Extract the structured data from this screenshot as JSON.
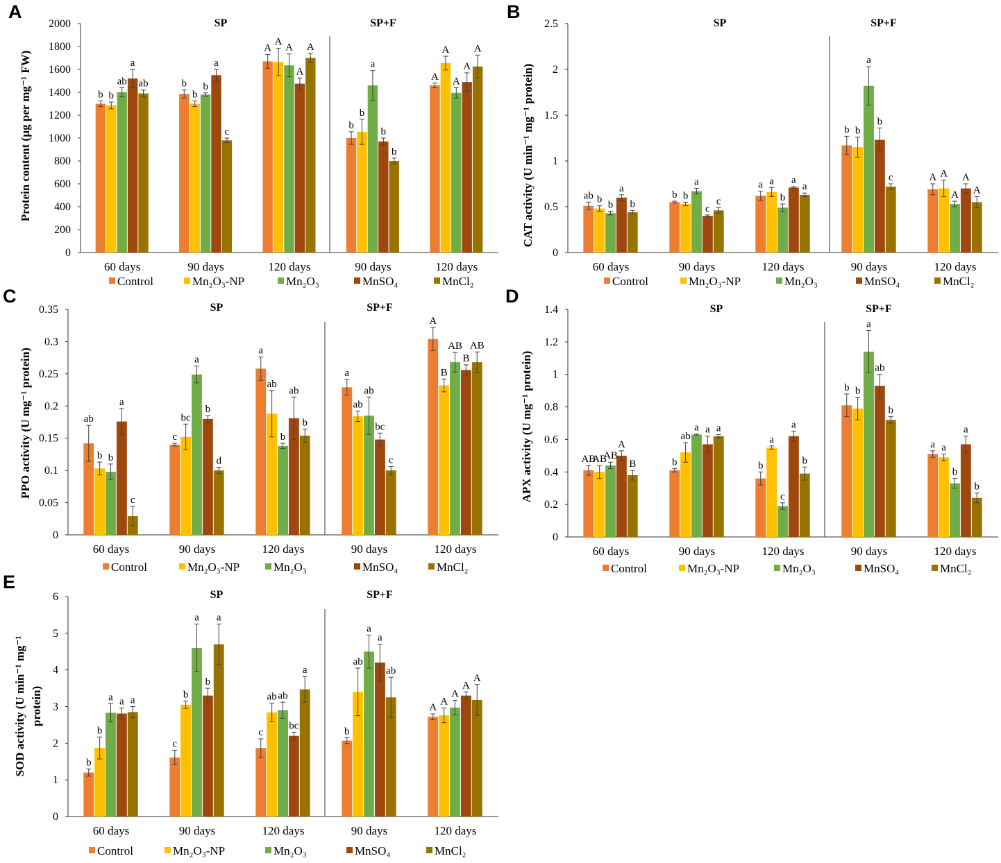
{
  "legend": [
    {
      "key": "control",
      "label": "Control",
      "color": "#ED7D31"
    },
    {
      "key": "np",
      "label": "Mn₂O₃-NP",
      "color": "#FFC000"
    },
    {
      "key": "mn2o3",
      "label": "Mn₂O₃",
      "color": "#70AD47"
    },
    {
      "key": "mnso4",
      "label": "MnSO₄",
      "color": "#9E480E"
    },
    {
      "key": "mncl2",
      "label": "MnCl₂",
      "color": "#997300"
    }
  ],
  "chart_data": [
    {
      "panel": "A",
      "type": "bar",
      "ylabel": "Protein content (µg per mg⁻¹ FW)",
      "ylim": [
        0,
        2000
      ],
      "yticks": [
        0,
        200,
        400,
        600,
        800,
        1000,
        1200,
        1400,
        1600,
        1800,
        2000
      ],
      "groups": [
        "SP",
        "SP+F"
      ],
      "categories": [
        "60 days",
        "90 days",
        "120 days",
        "90 days",
        "120 days"
      ],
      "values": [
        [
          1300,
          1285,
          1400,
          1520,
          1390
        ],
        [
          1385,
          1300,
          1380,
          1550,
          980
        ],
        [
          1670,
          1665,
          1635,
          1475,
          1700
        ],
        [
          1000,
          1055,
          1460,
          970,
          800
        ],
        [
          1460,
          1655,
          1395,
          1490,
          1625
        ]
      ],
      "errors": [
        [
          25,
          30,
          40,
          80,
          30
        ],
        [
          35,
          25,
          15,
          50,
          20
        ],
        [
          60,
          120,
          100,
          50,
          40
        ],
        [
          55,
          110,
          130,
          30,
          25
        ],
        [
          20,
          60,
          45,
          80,
          100
        ]
      ],
      "letters": [
        [
          "b",
          "b",
          "ab",
          "a",
          "ab"
        ],
        [
          "b",
          "b",
          "b",
          "a",
          "c"
        ],
        [
          "A",
          "A",
          "A",
          "A",
          "A"
        ],
        [
          "b",
          "b",
          "a",
          "b",
          "b"
        ],
        [
          "A",
          "A",
          "A",
          "A",
          "A"
        ]
      ]
    },
    {
      "panel": "B",
      "type": "bar",
      "ylabel": "CAT activity (U min⁻¹ mg⁻¹ protein)",
      "ylim": [
        0,
        2.5
      ],
      "yticks": [
        0,
        0.5,
        1,
        1.5,
        2,
        2.5
      ],
      "groups": [
        "SP",
        "SP+F"
      ],
      "categories": [
        "60 days",
        "90 days",
        "120 days",
        "90 days",
        "120 days"
      ],
      "values": [
        [
          0.51,
          0.48,
          0.43,
          0.6,
          0.44
        ],
        [
          0.55,
          0.53,
          0.67,
          0.4,
          0.46
        ],
        [
          0.62,
          0.66,
          0.49,
          0.71,
          0.63
        ],
        [
          1.17,
          1.15,
          1.82,
          1.23,
          0.72
        ],
        [
          0.69,
          0.7,
          0.53,
          0.7,
          0.55
        ]
      ],
      "errors": [
        [
          0.04,
          0.03,
          0.02,
          0.03,
          0.02
        ],
        [
          0.01,
          0.02,
          0.03,
          0.01,
          0.03
        ],
        [
          0.05,
          0.05,
          0.04,
          0.01,
          0.02
        ],
        [
          0.1,
          0.11,
          0.21,
          0.13,
          0.03
        ],
        [
          0.06,
          0.09,
          0.03,
          0.05,
          0.06
        ]
      ],
      "letters": [
        [
          "ab",
          "b",
          "b",
          "a",
          "b"
        ],
        [
          "b",
          "b",
          "a",
          "c",
          "c"
        ],
        [
          "a",
          "a",
          "b",
          "a",
          "a"
        ],
        [
          "b",
          "b",
          "a",
          "b",
          "c"
        ],
        [
          "A",
          "A",
          "A",
          "A",
          "A"
        ]
      ]
    },
    {
      "panel": "C",
      "type": "bar",
      "ylabel": "PPO activity (U mg⁻¹ protein)",
      "ylim": [
        0,
        0.35
      ],
      "yticks": [
        0,
        0.05,
        0.1,
        0.15,
        0.2,
        0.25,
        0.3,
        0.35
      ],
      "groups": [
        "SP",
        "SP+F"
      ],
      "categories": [
        "60 days",
        "90 days",
        "120 days",
        "90 days",
        "120 days"
      ],
      "values": [
        [
          0.142,
          0.103,
          0.098,
          0.176,
          0.029
        ],
        [
          0.14,
          0.152,
          0.249,
          0.18,
          0.1
        ],
        [
          0.258,
          0.188,
          0.138,
          0.181,
          0.154
        ],
        [
          0.229,
          0.184,
          0.185,
          0.148,
          0.1
        ],
        [
          0.304,
          0.232,
          0.268,
          0.256,
          0.268
        ]
      ],
      "errors": [
        [
          0.028,
          0.01,
          0.012,
          0.02,
          0.015
        ],
        [
          0.002,
          0.02,
          0.013,
          0.005,
          0.005
        ],
        [
          0.018,
          0.036,
          0.004,
          0.033,
          0.01
        ],
        [
          0.012,
          0.008,
          0.029,
          0.01,
          0.006
        ],
        [
          0.018,
          0.01,
          0.015,
          0.008,
          0.016
        ]
      ],
      "letters": [
        [
          "ab",
          "b",
          "b",
          "a",
          "c"
        ],
        [
          "c",
          "bc",
          "a",
          "b",
          "d"
        ],
        [
          "a",
          "ab",
          "b",
          "ab",
          "b"
        ],
        [
          "a",
          "ab",
          "ab",
          "bc",
          "c"
        ],
        [
          "A",
          "B",
          "AB",
          "B",
          "AB"
        ]
      ]
    },
    {
      "panel": "D",
      "type": "bar",
      "ylabel": "APX activity (U mg⁻¹ protein)",
      "ylim": [
        0,
        1.4
      ],
      "yticks": [
        0,
        0.2,
        0.4,
        0.6,
        0.8,
        1,
        1.2,
        1.4
      ],
      "groups": [
        "SP",
        "SP+F"
      ],
      "categories": [
        "60 days",
        "90 days",
        "120 days",
        "90 days",
        "120 days"
      ],
      "values": [
        [
          0.41,
          0.4,
          0.44,
          0.5,
          0.38
        ],
        [
          0.41,
          0.52,
          0.63,
          0.57,
          0.62
        ],
        [
          0.36,
          0.55,
          0.19,
          0.62,
          0.39
        ],
        [
          0.81,
          0.79,
          1.14,
          0.93,
          0.72
        ],
        [
          0.51,
          0.49,
          0.33,
          0.57,
          0.24
        ]
      ],
      "errors": [
        [
          0.03,
          0.04,
          0.02,
          0.03,
          0.03
        ],
        [
          0.01,
          0.06,
          0.003,
          0.05,
          0.01
        ],
        [
          0.04,
          0.01,
          0.02,
          0.03,
          0.04
        ],
        [
          0.07,
          0.07,
          0.13,
          0.07,
          0.02
        ],
        [
          0.02,
          0.02,
          0.03,
          0.05,
          0.03
        ]
      ],
      "letters": [
        [
          "AB",
          "AB",
          "AB",
          "A",
          "B"
        ],
        [
          "b",
          "ab",
          "a",
          "a",
          "a"
        ],
        [
          "b",
          "a",
          "c",
          "a",
          "b"
        ],
        [
          "b",
          "b",
          "a",
          "ab",
          "b"
        ],
        [
          "a",
          "a",
          "b",
          "a",
          "b"
        ]
      ]
    },
    {
      "panel": "E",
      "type": "bar",
      "ylabel": "SOD activity (U min⁻¹ mg⁻¹ protein)",
      "ylim": [
        0,
        6
      ],
      "yticks": [
        0,
        1,
        2,
        3,
        4,
        5,
        6
      ],
      "groups": [
        "SP",
        "SP+F"
      ],
      "categories": [
        "60 days",
        "90 days",
        "120 days",
        "90 days",
        "120 days"
      ],
      "values": [
        [
          1.2,
          1.87,
          2.83,
          2.81,
          2.85
        ],
        [
          1.61,
          3.05,
          4.6,
          3.3,
          4.7
        ],
        [
          1.87,
          2.84,
          2.9,
          2.2,
          3.47
        ],
        [
          2.07,
          3.4,
          4.5,
          4.2,
          3.25
        ],
        [
          2.72,
          2.76,
          2.97,
          3.3,
          3.18
        ]
      ],
      "errors": [
        [
          0.1,
          0.3,
          0.25,
          0.15,
          0.15
        ],
        [
          0.2,
          0.1,
          0.65,
          0.2,
          0.55
        ],
        [
          0.25,
          0.25,
          0.22,
          0.1,
          0.35
        ],
        [
          0.08,
          0.65,
          0.45,
          0.5,
          0.55
        ],
        [
          0.08,
          0.2,
          0.2,
          0.1,
          0.42
        ]
      ],
      "letters": [
        [
          "b",
          "b",
          "a",
          "a",
          "a"
        ],
        [
          "c",
          "b",
          "a",
          "b",
          "a"
        ],
        [
          "c",
          "ab",
          "ab",
          "bc",
          "a"
        ],
        [
          "b",
          "ab",
          "a",
          "a",
          "ab"
        ],
        [
          "A",
          "A",
          "A",
          "A",
          "A"
        ]
      ]
    }
  ]
}
